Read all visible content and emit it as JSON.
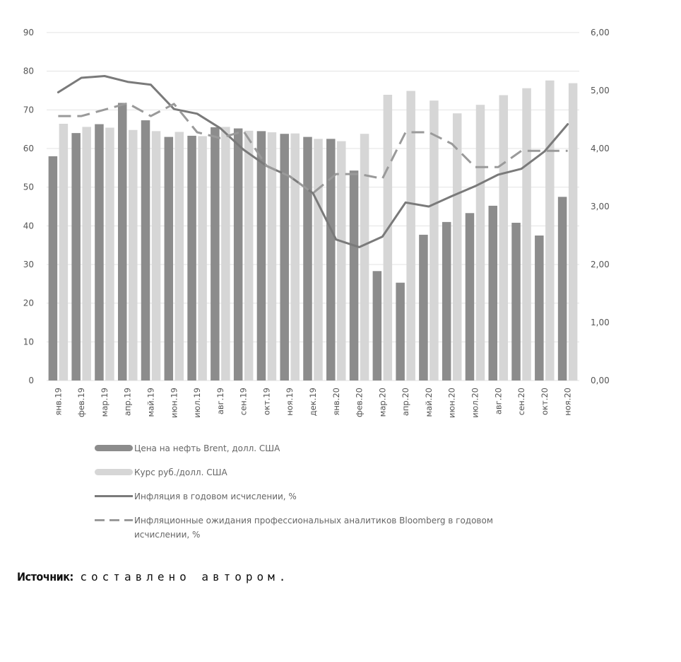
{
  "chart_data": {
    "type": "bar",
    "categories": [
      "янв.19",
      "фев.19",
      "мар.19",
      "апр.19",
      "май.19",
      "июн.19",
      "июл.19",
      "авг.19",
      "сен.19",
      "окт.19",
      "ноя.19",
      "дек.19",
      "янв.20",
      "фев.20",
      "мар.20",
      "апр.20",
      "май.20",
      "июн.20",
      "июл.20",
      "авг.20",
      "сен.20",
      "окт.20",
      "ноя.20"
    ],
    "left_axis": {
      "ylim": [
        0,
        90
      ],
      "ticks": [
        "0",
        "10",
        "20",
        "30",
        "40",
        "50",
        "60",
        "70",
        "80",
        "90"
      ]
    },
    "right_axis": {
      "ylim": [
        0,
        6
      ],
      "ticks": [
        "0,00",
        "1,00",
        "2,00",
        "3,00",
        "4,00",
        "5,00",
        "6,00"
      ]
    },
    "series": [
      {
        "name": "Цена на нефть Brent, долл. США",
        "kind": "bar",
        "axis": "left",
        "color": "#8c8c8c",
        "values": [
          58,
          64,
          66.3,
          71.8,
          67.3,
          63,
          63.3,
          65.5,
          65.2,
          64.5,
          63.8,
          63,
          62.5,
          54.3,
          28.3,
          25.3,
          37.7,
          41,
          43.3,
          45.2,
          40.8,
          37.5,
          47.5
        ]
      },
      {
        "name": "Курс руб./долл. США",
        "kind": "bar",
        "axis": "left",
        "color": "#d6d6d6",
        "values": [
          66.4,
          65.6,
          65.4,
          64.8,
          64.5,
          64.3,
          63.2,
          65.6,
          64.6,
          64.2,
          63.9,
          62.5,
          61.9,
          63.8,
          73.9,
          74.9,
          72.4,
          69.1,
          71.3,
          73.8,
          75.6,
          77.6,
          76.9
        ]
      },
      {
        "name": "Инфляция в годовом исчислении, %",
        "kind": "line",
        "axis": "right",
        "color": "#7a7a7a",
        "values": [
          4.97,
          5.22,
          5.25,
          5.15,
          5.1,
          4.68,
          4.6,
          4.35,
          3.98,
          3.7,
          3.52,
          3.23,
          2.43,
          2.3,
          2.48,
          3.07,
          3,
          3.18,
          3.35,
          3.55,
          3.65,
          3.95,
          4.42
        ]
      },
      {
        "name": "Инфляционные ожидания профессиональных аналитиков Bloomberg в годовом исчислении, %",
        "kind": "dashed-line",
        "axis": "right",
        "color": "#9a9a9a",
        "values": [
          4.56,
          4.56,
          4.67,
          4.78,
          4.56,
          4.77,
          4.28,
          4.18,
          4.3,
          3.7,
          3.52,
          3.23,
          3.56,
          3.56,
          3.48,
          4.28,
          4.28,
          4.08,
          3.68,
          3.68,
          3.96,
          3.96,
          3.96
        ]
      }
    ]
  },
  "legend": {
    "brent": "Цена на нефть Brent, долл. США",
    "rate": "Курс руб./долл. США",
    "inflation": "Инфляция в годовом исчислении, %",
    "expectations_line1": "Инфляционные ожидания профессиональных аналитиков Bloomberg в годовом",
    "expectations_line2": "исчислении, %"
  },
  "source": {
    "label": "Источник:",
    "text": "составлено автором."
  }
}
